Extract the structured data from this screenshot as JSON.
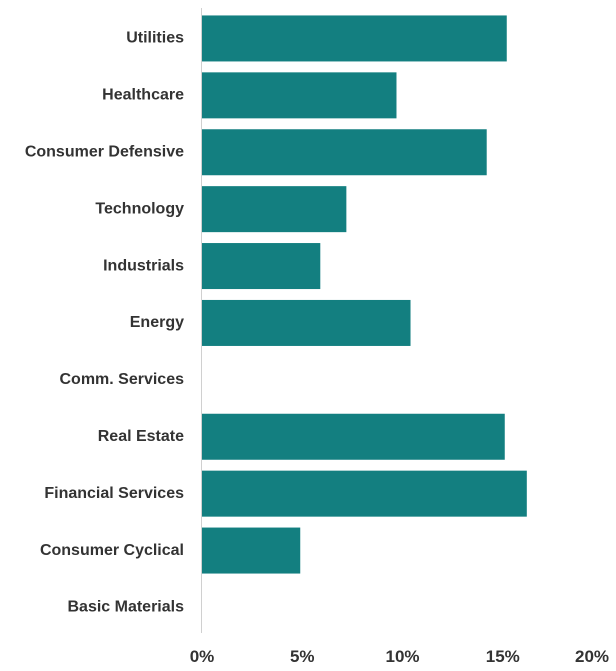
{
  "chart_data": {
    "type": "bar",
    "orientation": "horizontal",
    "categories": [
      "Utilities",
      "Healthcare",
      "Consumer Defensive",
      "Technology",
      "Industrials",
      "Energy",
      "Comm. Services",
      "Real Estate",
      "Financial Services",
      "Consumer Cyclical",
      "Basic Materials"
    ],
    "values": [
      15.2,
      9.7,
      14.2,
      7.2,
      5.9,
      10.4,
      0,
      15.1,
      16.2,
      4.9,
      0
    ],
    "xlim": [
      0,
      20
    ],
    "x_ticks": [
      0,
      5,
      10,
      15,
      20
    ],
    "x_tick_labels": [
      "0%",
      "5%",
      "10%",
      "15%",
      "20%"
    ],
    "bar_color": "#137f80",
    "grid": false,
    "legend": "none"
  }
}
